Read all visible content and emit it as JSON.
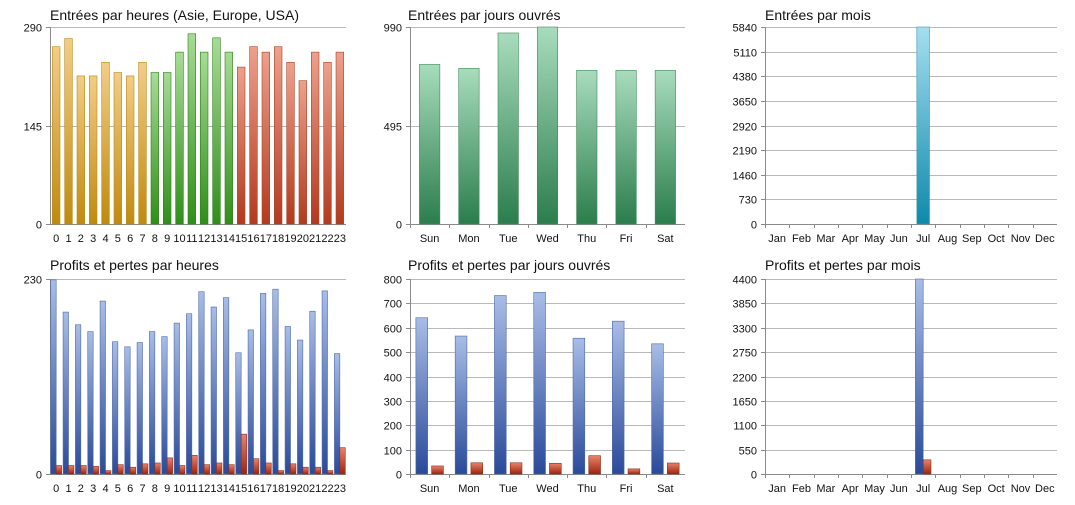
{
  "colors": {
    "hours_gold": [
      "#f2cd86",
      "#c08a0e"
    ],
    "hours_green": [
      "#a7dc95",
      "#2f8f18"
    ],
    "hours_red": [
      "#eea08c",
      "#b23a1e"
    ],
    "weekday_green": [
      "#a8dcbc",
      "#2b7d4c"
    ],
    "month_teal": [
      "#a5def0",
      "#0e8aaa"
    ],
    "profit_blue": [
      "#a8bde6",
      "#2a4a9a"
    ],
    "loss_red": [
      "#e8836a",
      "#9e240e"
    ]
  },
  "chart_data": [
    {
      "id": "entries_hours",
      "type": "bar",
      "title": "Entrées par heures (Asie, Europe, USA)",
      "categories": [
        "0",
        "1",
        "2",
        "3",
        "4",
        "5",
        "6",
        "7",
        "8",
        "9",
        "10",
        "11",
        "12",
        "13",
        "14",
        "15",
        "16",
        "17",
        "18",
        "19",
        "20",
        "21",
        "22",
        "23"
      ],
      "yticks": [
        "0",
        "145",
        "290"
      ],
      "ylim": [
        0,
        290
      ],
      "series": [
        {
          "values": [
            261,
            273,
            218,
            218,
            238,
            223,
            218,
            238,
            223,
            223,
            253,
            280,
            253,
            274,
            253,
            231,
            261,
            253,
            261,
            238,
            211,
            253,
            238,
            253
          ]
        }
      ],
      "bar_colors": [
        "gold",
        "gold",
        "gold",
        "gold",
        "gold",
        "gold",
        "gold",
        "gold",
        "green",
        "green",
        "green",
        "green",
        "green",
        "green",
        "green",
        "red",
        "red",
        "red",
        "red",
        "red",
        "red",
        "red",
        "red",
        "red"
      ],
      "grid": true
    },
    {
      "id": "entries_weekdays",
      "type": "bar",
      "title": "Entrées par jours ouvrés",
      "categories": [
        "Sun",
        "Mon",
        "Tue",
        "Wed",
        "Thu",
        "Fri",
        "Sat"
      ],
      "yticks": [
        "0",
        "495",
        "990"
      ],
      "ylim": [
        0,
        990
      ],
      "series": [
        {
          "values": [
            802,
            782,
            960,
            990,
            772,
            772,
            772
          ]
        }
      ],
      "grid": true
    },
    {
      "id": "entries_months",
      "type": "bar",
      "title": "Entrées par mois",
      "categories": [
        "Jan",
        "Feb",
        "Mar",
        "Apr",
        "May",
        "Jun",
        "Jul",
        "Aug",
        "Sep",
        "Oct",
        "Nov",
        "Dec"
      ],
      "yticks": [
        "0",
        "730",
        "1460",
        "2190",
        "2920",
        "3650",
        "4380",
        "5110",
        "5840"
      ],
      "ylim": [
        0,
        5840
      ],
      "series": [
        {
          "values": [
            0,
            0,
            0,
            0,
            0,
            0,
            5840,
            0,
            0,
            0,
            0,
            0
          ]
        }
      ],
      "grid": true
    },
    {
      "id": "pnl_hours",
      "type": "bar",
      "title": "Profits et pertes par heures",
      "categories": [
        "0",
        "1",
        "2",
        "3",
        "4",
        "5",
        "6",
        "7",
        "8",
        "9",
        "10",
        "11",
        "12",
        "13",
        "14",
        "15",
        "16",
        "17",
        "18",
        "19",
        "20",
        "21",
        "22",
        "23"
      ],
      "yticks": [
        "0",
        "230"
      ],
      "ylim": [
        0,
        230
      ],
      "series": [
        {
          "values": [
            229,
            191,
            176,
            168,
            204,
            156,
            150,
            155,
            168,
            162,
            178,
            189,
            215,
            197,
            208,
            143,
            170,
            213,
            218,
            174,
            158,
            192,
            216,
            142
          ]
        },
        {
          "values": [
            10,
            10,
            10,
            9,
            4,
            11,
            8,
            12,
            13,
            19,
            10,
            22,
            11,
            13,
            11,
            47,
            18,
            13,
            4,
            12,
            8,
            8,
            4,
            31
          ]
        }
      ],
      "grid": true
    },
    {
      "id": "pnl_weekdays",
      "type": "bar",
      "title": "Profits et pertes par jours ouvrés",
      "categories": [
        "Sun",
        "Mon",
        "Tue",
        "Wed",
        "Thu",
        "Fri",
        "Sat"
      ],
      "yticks": [
        "0",
        "100",
        "200",
        "300",
        "400",
        "500",
        "600",
        "700",
        "800"
      ],
      "ylim": [
        0,
        800
      ],
      "series": [
        {
          "values": [
            641,
            566,
            732,
            745,
            557,
            627,
            534
          ]
        },
        {
          "values": [
            33,
            46,
            46,
            44,
            75,
            21,
            45
          ]
        }
      ],
      "grid": true
    },
    {
      "id": "pnl_months",
      "type": "bar",
      "title": "Profits et pertes par mois",
      "categories": [
        "Jan",
        "Feb",
        "Mar",
        "Apr",
        "May",
        "Jun",
        "Jul",
        "Aug",
        "Sep",
        "Oct",
        "Nov",
        "Dec"
      ],
      "yticks": [
        "0",
        "550",
        "1100",
        "1650",
        "2200",
        "2750",
        "3300",
        "3850",
        "4400"
      ],
      "ylim": [
        0,
        4400
      ],
      "series": [
        {
          "values": [
            0,
            0,
            0,
            0,
            0,
            0,
            4400,
            0,
            0,
            0,
            0,
            0
          ]
        },
        {
          "values": [
            0,
            0,
            0,
            0,
            0,
            0,
            320,
            0,
            0,
            0,
            0,
            0
          ]
        }
      ],
      "grid": true
    }
  ]
}
